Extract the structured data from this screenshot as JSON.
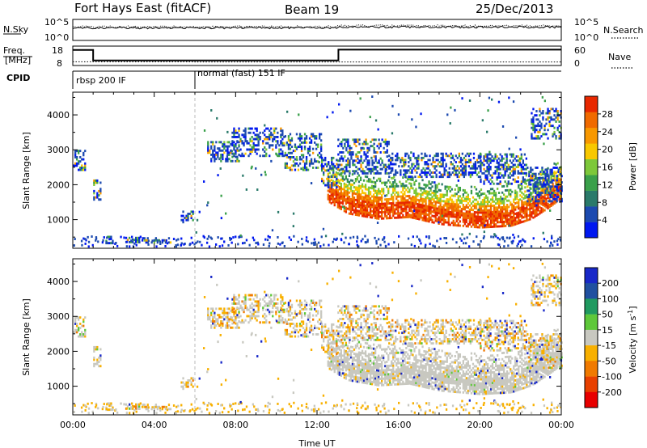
{
  "header": {
    "station": "Fort Hays East (fitACF)",
    "beam": "Beam 19",
    "date": "25/Dec/2013"
  },
  "chart_data": [
    {
      "type": "line",
      "name": "noise-panel",
      "left_label": "N.Sky",
      "right_label": "N.Search",
      "left_ticks": [
        "10^5",
        "10^0"
      ],
      "right_ticks": [
        "10^5",
        "10^0"
      ],
      "xlim": [
        0,
        24
      ]
    },
    {
      "type": "line",
      "name": "frequency-panel",
      "left_label": [
        "Freq.",
        "[MHz]"
      ],
      "right_label": "Nave",
      "left_ticks": [
        18,
        8
      ],
      "right_ticks": [
        60,
        0
      ],
      "freq_steps": [
        [
          0,
          1,
          16.0
        ],
        [
          1,
          13.05,
          10.6
        ],
        [
          13.05,
          24,
          16.2
        ]
      ],
      "nave_steps": [
        [
          0,
          6,
          11.5
        ],
        [
          6,
          24,
          11.0
        ]
      ]
    },
    {
      "type": "table",
      "name": "cpid-panel",
      "label": "CPID",
      "modes": [
        {
          "start": 0.1,
          "label": "rbsp 200 IF"
        },
        {
          "start": 6.0,
          "label": "normal (fast) 151 IF"
        }
      ]
    },
    {
      "type": "heatmap",
      "name": "power-panel",
      "ylabel": "Slant Range [km]",
      "ylim": [
        180,
        4650
      ],
      "yticks": [
        1000,
        2000,
        3000,
        4000
      ],
      "xlim": [
        0,
        24
      ],
      "colorbar": {
        "label": "Power [dB]",
        "range": [
          0,
          32
        ],
        "ticks": [
          4,
          8,
          12,
          16,
          20,
          24,
          28
        ],
        "colors": [
          "#0018f0",
          "#1c4ab0",
          "#2a7a6a",
          "#3aa04a",
          "#7dc83a",
          "#f8c800",
          "#f89800",
          "#f06a00",
          "#e82800"
        ]
      }
    },
    {
      "type": "heatmap",
      "name": "velocity-panel",
      "ylabel": "Slant Range [km]",
      "ylim": [
        180,
        4650
      ],
      "yticks": [
        1000,
        2000,
        3000,
        4000
      ],
      "xlabel": "Time UT",
      "xlim": [
        0,
        24
      ],
      "xticks": [
        "00:00",
        "04:00",
        "08:00",
        "12:00",
        "16:00",
        "20:00",
        "00:00"
      ],
      "colorbar": {
        "label": "Velocity [m s^-1]",
        "ticks": [
          "200",
          "100",
          "50",
          "15",
          "-15",
          "-50",
          "-100",
          "-200"
        ],
        "colors": [
          "#1828c8",
          "#2050a0",
          "#209a60",
          "#5ec83a",
          "#c8c8c0",
          "#f8b000",
          "#f07a00",
          "#e84000",
          "#e80000"
        ]
      }
    }
  ]
}
